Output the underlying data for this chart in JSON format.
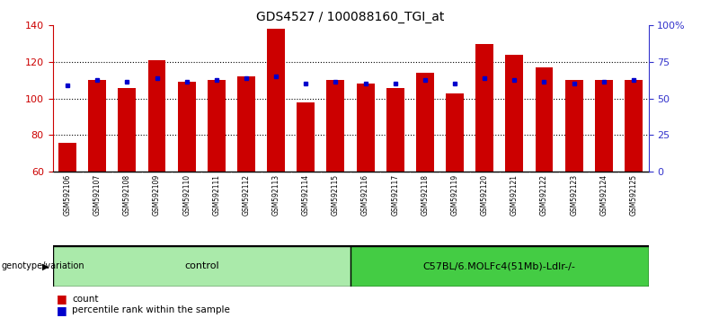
{
  "title": "GDS4527 / 100088160_TGI_at",
  "samples": [
    "GSM592106",
    "GSM592107",
    "GSM592108",
    "GSM592109",
    "GSM592110",
    "GSM592111",
    "GSM592112",
    "GSM592113",
    "GSM592114",
    "GSM592115",
    "GSM592116",
    "GSM592117",
    "GSM592118",
    "GSM592119",
    "GSM592120",
    "GSM592121",
    "GSM592122",
    "GSM592123",
    "GSM592124",
    "GSM592125"
  ],
  "bar_values": [
    76,
    110,
    106,
    121,
    109,
    110,
    112,
    138,
    98,
    110,
    108,
    106,
    114,
    103,
    130,
    124,
    117,
    110,
    110,
    110
  ],
  "percentile_values": [
    107,
    110,
    109,
    111,
    109,
    110,
    111,
    112,
    108,
    109,
    108,
    108,
    110,
    108,
    111,
    110,
    109,
    108,
    109,
    110
  ],
  "bar_color": "#cc0000",
  "percentile_color": "#0000cc",
  "ylim_left": [
    60,
    140
  ],
  "yticks_left": [
    60,
    80,
    100,
    120,
    140
  ],
  "yticks_right": [
    0,
    25,
    50,
    75,
    100
  ],
  "ytick_labels_right": [
    "0",
    "25",
    "50",
    "75",
    "100%"
  ],
  "grid_values": [
    80,
    100,
    120
  ],
  "n_control": 10,
  "n_treatment": 10,
  "control_label": "control",
  "treatment_label": "C57BL/6.MOLFc4(51Mb)-Ldlr-/-",
  "genotype_label": "genotype/variation",
  "legend_count": "count",
  "legend_percentile": "percentile rank within the sample",
  "control_color": "#aaeaaa",
  "treatment_color": "#44cc44",
  "label_area_color": "#c8c8c8",
  "background_color": "#ffffff",
  "left_axis_color": "#cc0000",
  "right_axis_color": "#3333cc"
}
